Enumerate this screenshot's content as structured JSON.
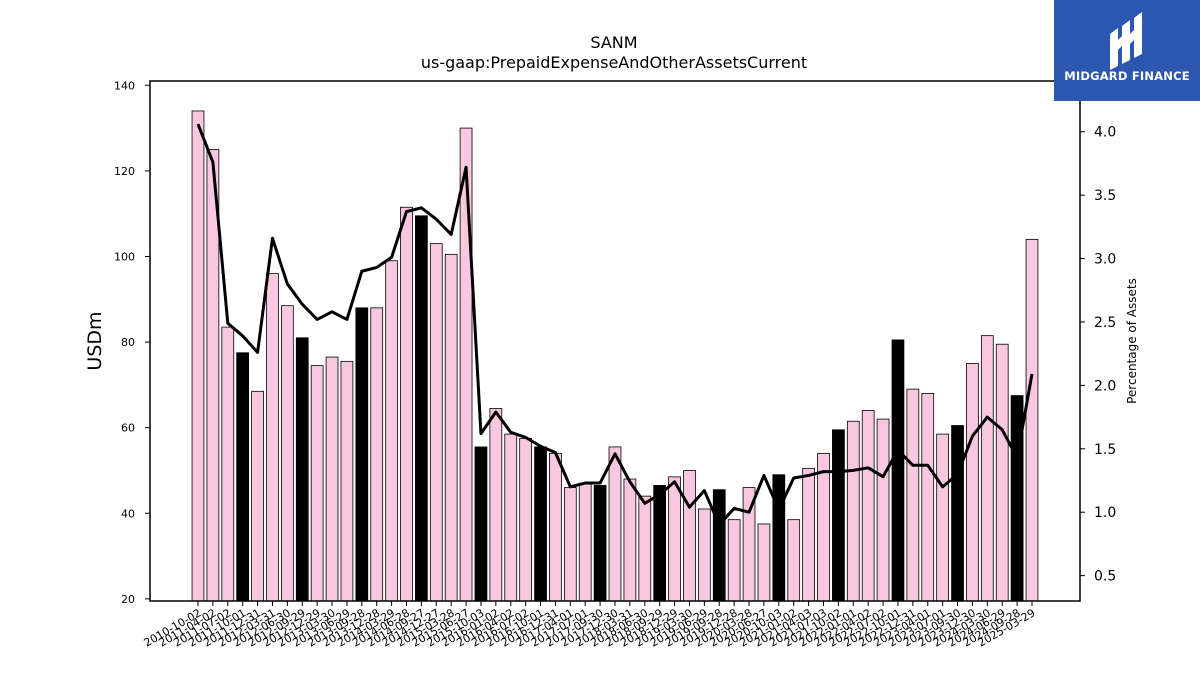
{
  "logo": {
    "text": "MIDGARD FINANCE",
    "background": "#2b57b0"
  },
  "chart_data": {
    "type": "bar+line",
    "title": "SANM",
    "subtitle": "us-gaap:PrepaidExpenseAndOtherAssetsCurrent",
    "ylabel": "USDm",
    "ylabel_right": "Percentage of Assets",
    "ylim": [
      19.5,
      141
    ],
    "ylim_right": [
      0.3,
      4.4
    ],
    "yticks": [
      20,
      40,
      60,
      80,
      100,
      120,
      140
    ],
    "yticks_right": [
      0.5,
      1.0,
      1.5,
      2.0,
      2.5,
      3.0,
      3.5,
      4.0
    ],
    "bar_color": "#f9c8e0",
    "highlight_color": "#000000",
    "line_color": "#000000",
    "categories": [
      "2010-10-02",
      "2011-04-02",
      "2011-07-02",
      "2011-10-01",
      "2011-12-31",
      "2012-03-31",
      "2012-06-30",
      "2012-09-29",
      "2012-12-29",
      "2013-03-30",
      "2013-06-29",
      "2013-09-28",
      "2013-12-28",
      "2014-03-29",
      "2014-06-28",
      "2014-09-27",
      "2014-12-27",
      "2015-03-28",
      "2015-06-27",
      "2015-10-03",
      "2016-01-02",
      "2016-04-02",
      "2016-07-02",
      "2016-10-01",
      "2016-12-31",
      "2017-04-01",
      "2017-07-01",
      "2017-09-30",
      "2017-12-30",
      "2018-03-31",
      "2018-06-30",
      "2018-09-29",
      "2018-12-29",
      "2019-03-30",
      "2019-06-29",
      "2019-09-28",
      "2019-12-28",
      "2020-03-28",
      "2020-06-27",
      "2020-10-03",
      "2021-01-02",
      "2021-04-03",
      "2021-07-03",
      "2021-10-02",
      "2022-01-01",
      "2022-04-02",
      "2022-07-02",
      "2022-10-01",
      "2022-12-31",
      "2023-04-01",
      "2023-07-01",
      "2023-09-30",
      "2023-12-30",
      "2024-03-30",
      "2024-06-29",
      "2024-09-28",
      "2025-03-29"
    ],
    "values": [
      134,
      125,
      83.5,
      77.5,
      68.5,
      96,
      88.5,
      81,
      74.5,
      76.5,
      75.5,
      88,
      88,
      99,
      111.5,
      109.5,
      103,
      100.5,
      130,
      55.5,
      64.5,
      58.5,
      57.5,
      55.5,
      54,
      46,
      47,
      46.5,
      55.5,
      48,
      44,
      46.5,
      48.5,
      50,
      41,
      45.5,
      38.5,
      46,
      37.5,
      49,
      38.5,
      50.5,
      54,
      59.5,
      61.5,
      64,
      62,
      80.5,
      69,
      68,
      58.5,
      60.5,
      75,
      81.5,
      79.5,
      67.5,
      104
    ],
    "highlight": [
      false,
      false,
      false,
      true,
      false,
      false,
      false,
      true,
      false,
      false,
      false,
      true,
      false,
      false,
      false,
      true,
      false,
      false,
      false,
      true,
      false,
      false,
      false,
      true,
      false,
      false,
      false,
      true,
      false,
      false,
      false,
      true,
      false,
      false,
      false,
      true,
      false,
      false,
      false,
      true,
      false,
      false,
      false,
      true,
      false,
      false,
      false,
      true,
      false,
      false,
      false,
      true,
      false,
      false,
      false,
      true,
      false
    ],
    "series": [
      {
        "values": [
          4.06,
          3.76,
          2.49,
          2.39,
          2.26,
          3.16,
          2.8,
          2.64,
          2.52,
          2.58,
          2.52,
          2.9,
          2.93,
          3.01,
          3.37,
          3.4,
          3.31,
          3.19,
          3.72,
          1.62,
          1.79,
          1.63,
          1.59,
          1.52,
          1.47,
          1.2,
          1.23,
          1.23,
          1.46,
          1.24,
          1.07,
          1.14,
          1.24,
          1.04,
          1.17,
          0.9,
          1.03,
          1.0,
          1.29,
          1.02,
          1.27,
          1.29,
          1.32,
          1.32,
          1.33,
          1.35,
          1.28,
          1.49,
          1.37,
          1.37,
          1.2,
          1.3,
          1.6,
          1.75,
          1.65,
          1.43,
          2.09
        ]
      }
    ],
    "grid": false,
    "legend": "none"
  }
}
